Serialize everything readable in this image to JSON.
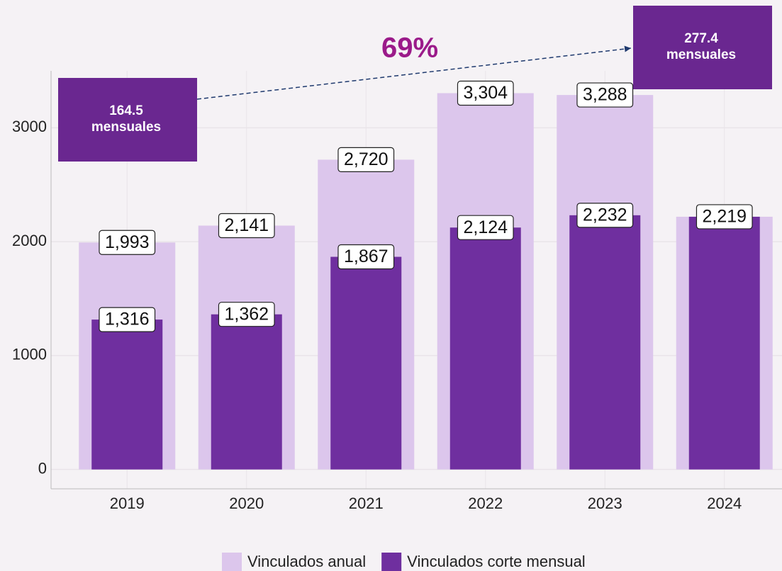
{
  "chart_data": {
    "type": "bar",
    "categories": [
      "2019",
      "2020",
      "2021",
      "2022",
      "2023",
      "2024"
    ],
    "series": [
      {
        "name": "Vinculados anual",
        "color": "#dcc6ec",
        "values": [
          1993,
          2141,
          2720,
          3304,
          3288,
          2219
        ],
        "value_labels": [
          "1,993",
          "2,141",
          "2,720",
          "3,304",
          "3,288",
          "2,219"
        ]
      },
      {
        "name": "Vinculados corte mensual",
        "color": "#6f2f9f",
        "values": [
          1316,
          1362,
          1867,
          2124,
          2232,
          2219
        ],
        "value_labels": [
          "1,316",
          "1,362",
          "1,867",
          "2,124",
          "2,232",
          null
        ]
      }
    ],
    "ylim": [
      -170,
      3500
    ],
    "yticks": [
      0,
      1000,
      2000,
      3000
    ],
    "grid": true,
    "annotations": {
      "growth": "69%",
      "start_box": [
        "164.5",
        "mensuales"
      ],
      "end_box": [
        "277.4",
        "mensuales"
      ],
      "box_color": "#6a2790",
      "growth_color": "#9b1b8a"
    }
  }
}
